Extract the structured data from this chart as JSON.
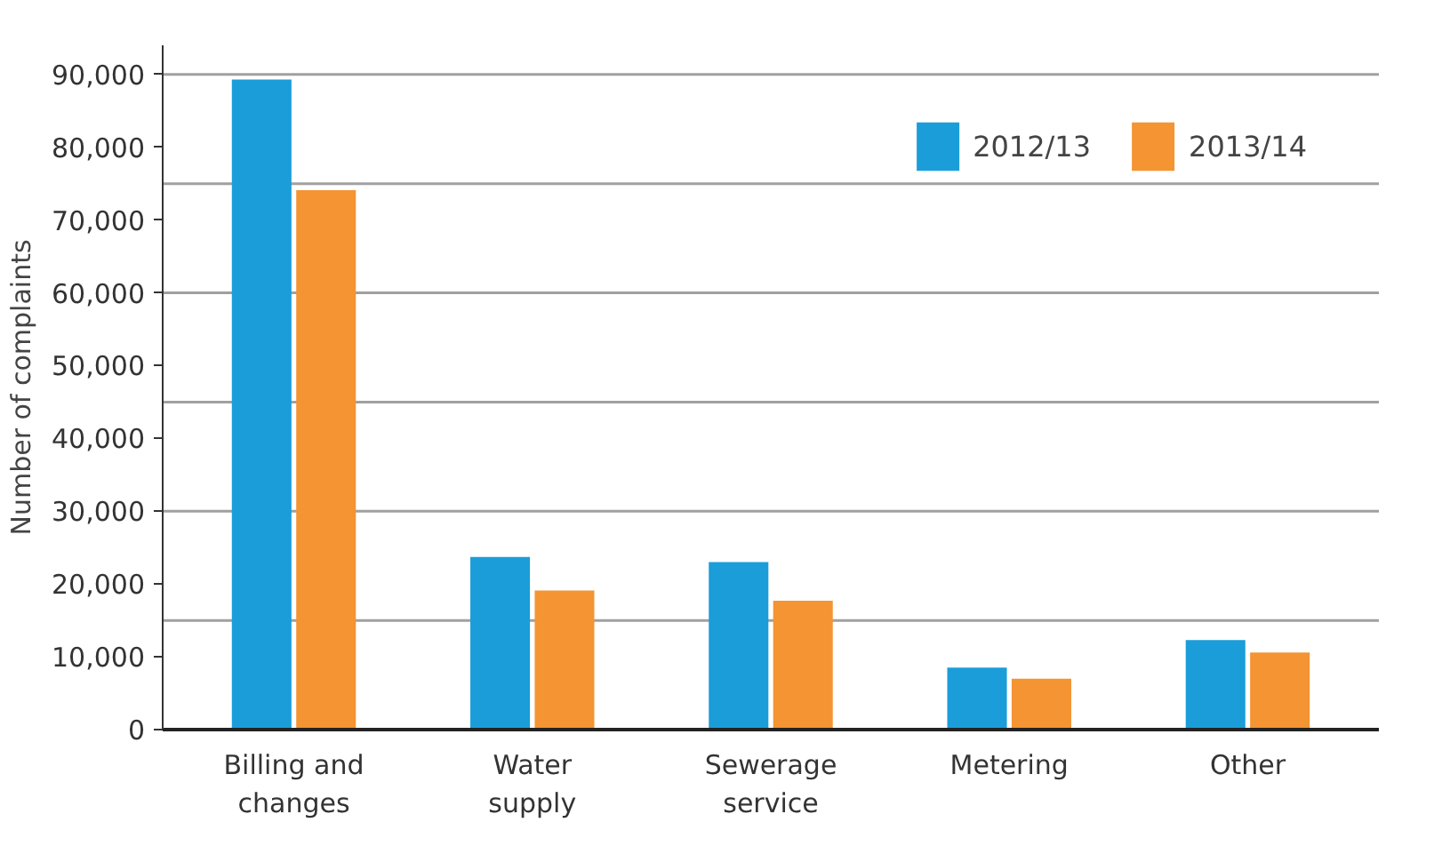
{
  "chart_data": {
    "type": "bar",
    "ylabel": "Number of complaints",
    "categories": [
      "Billing and\nchanges",
      "Water\nsupply",
      "Sewerage\nservice",
      "Metering",
      "Other"
    ],
    "series": [
      {
        "name": "2012/13",
        "color": "#1b9dd9",
        "values": [
          89300,
          23700,
          23000,
          8500,
          12300
        ]
      },
      {
        "name": "2013/14",
        "color": "#f49433",
        "values": [
          74100,
          19100,
          17700,
          7000,
          10600
        ]
      }
    ],
    "ylim": [
      0,
      94000
    ],
    "yticks": [
      {
        "value": 0,
        "label": "0"
      },
      {
        "value": 10000,
        "label": "10,000"
      },
      {
        "value": 20000,
        "label": "20,000"
      },
      {
        "value": 30000,
        "label": "30,000"
      },
      {
        "value": 40000,
        "label": "40,000"
      },
      {
        "value": 50000,
        "label": "50,000"
      },
      {
        "value": 60000,
        "label": "60,000"
      },
      {
        "value": 70000,
        "label": "70,000"
      },
      {
        "value": 80000,
        "label": "80,000"
      },
      {
        "value": 90000,
        "label": "90,000"
      }
    ],
    "ref_lines": [
      {
        "axis": "y",
        "value": 15000,
        "color": "#a0a0a0"
      },
      {
        "axis": "y",
        "value": 30000,
        "color": "#a0a0a0"
      },
      {
        "axis": "y",
        "value": 45000,
        "color": "#a0a0a0"
      },
      {
        "axis": "y",
        "value": 60000,
        "color": "#a0a0a0"
      },
      {
        "axis": "y",
        "value": 75000,
        "color": "#a0a0a0"
      },
      {
        "axis": "y",
        "value": 90000,
        "color": "#a0a0a0"
      }
    ],
    "grid": false,
    "legend": "top right"
  }
}
